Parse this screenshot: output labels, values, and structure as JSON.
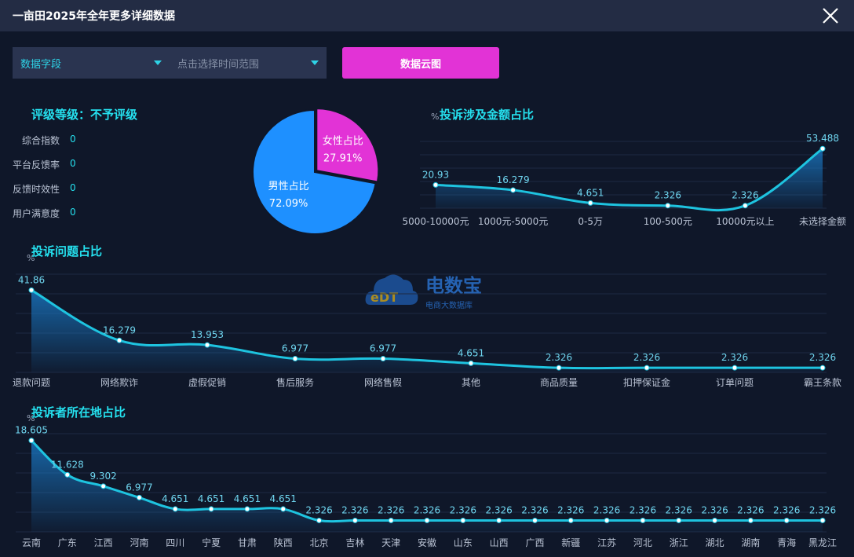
{
  "window": {
    "title": "一亩田2025年全年更多详细数据"
  },
  "filters": {
    "field_label": "数据字段",
    "time_placeholder": "点击选择时间范围",
    "cloud_button": "数据云图"
  },
  "rating": {
    "title": "评级等级：不予评级",
    "items": [
      {
        "label": "综合指数",
        "value": "0"
      },
      {
        "label": "平台反馈率",
        "value": "0"
      },
      {
        "label": "反馈时效性",
        "value": "0"
      },
      {
        "label": "用户满意度",
        "value": "0"
      }
    ]
  },
  "watermark": {
    "brand": "电数宝",
    "sub": "电商大数据库",
    "logo_text": "eDT"
  },
  "colors": {
    "accent": "#25e1ef",
    "line": "#1ec4e0",
    "female": "#e233d6",
    "male": "#1e90ff",
    "button": "#e233d6"
  },
  "chart_data": [
    {
      "id": "gender",
      "type": "pie",
      "title": "",
      "labels": [
        "女性占比",
        "男性占比"
      ],
      "values": [
        27.91,
        72.09
      ],
      "value_labels": [
        "27.91%",
        "72.09%"
      ],
      "colors": [
        "#e233d6",
        "#1e90ff"
      ]
    },
    {
      "id": "amount",
      "type": "area",
      "title": "投诉涉及金额占比",
      "ylabel": "%",
      "categories": [
        "5000-10000元",
        "1000元-5000元",
        "0-5万",
        "100-500元",
        "10000元以上",
        "未选择金额"
      ],
      "values": [
        20.93,
        16.279,
        4.651,
        2.326,
        2.326,
        53.488
      ],
      "value_labels": [
        "20.93",
        "16.279",
        "4.651",
        "2.326",
        "2.326",
        "53.488"
      ],
      "ylim": [
        0,
        60
      ],
      "grid": true
    },
    {
      "id": "issue",
      "type": "area",
      "title": "投诉问题占比",
      "ylabel": "%",
      "categories": [
        "退款问题",
        "网络欺诈",
        "虚假促销",
        "售后服务",
        "网络售假",
        "其他",
        "商品质量",
        "扣押保证金",
        "订单问题",
        "霸王条款"
      ],
      "values": [
        41.86,
        16.279,
        13.953,
        6.977,
        6.977,
        4.651,
        2.326,
        2.326,
        2.326,
        2.326
      ],
      "value_labels": [
        "41.86",
        "16.279",
        "13.953",
        "6.977",
        "6.977",
        "4.651",
        "2.326",
        "2.326",
        "2.326",
        "2.326"
      ],
      "ylim": [
        0,
        50
      ],
      "grid": true
    },
    {
      "id": "region",
      "type": "area",
      "title": "投诉者所在地占比",
      "ylabel": "%",
      "categories": [
        "云南",
        "广东",
        "江西",
        "河南",
        "四川",
        "宁夏",
        "甘肃",
        "陕西",
        "北京",
        "吉林",
        "天津",
        "安徽",
        "山东",
        "山西",
        "广西",
        "新疆",
        "江苏",
        "河北",
        "浙江",
        "湖北",
        "湖南",
        "青海",
        "黑龙江"
      ],
      "values": [
        18.605,
        11.628,
        9.302,
        6.977,
        4.651,
        4.651,
        4.651,
        4.651,
        2.326,
        2.326,
        2.326,
        2.326,
        2.326,
        2.326,
        2.326,
        2.326,
        2.326,
        2.326,
        2.326,
        2.326,
        2.326,
        2.326,
        2.326
      ],
      "value_labels": [
        "18.605",
        "11.628",
        "9.302",
        "6.977",
        "4.651",
        "4.651",
        "4.651",
        "4.651",
        "2.326",
        "2.326",
        "2.326",
        "2.326",
        "2.326",
        "2.326",
        "2.326",
        "2.326",
        "2.326",
        "2.326",
        "2.326",
        "2.326",
        "2.326",
        "2.326",
        "2.326"
      ],
      "ylim": [
        0,
        20
      ],
      "grid": true
    }
  ]
}
